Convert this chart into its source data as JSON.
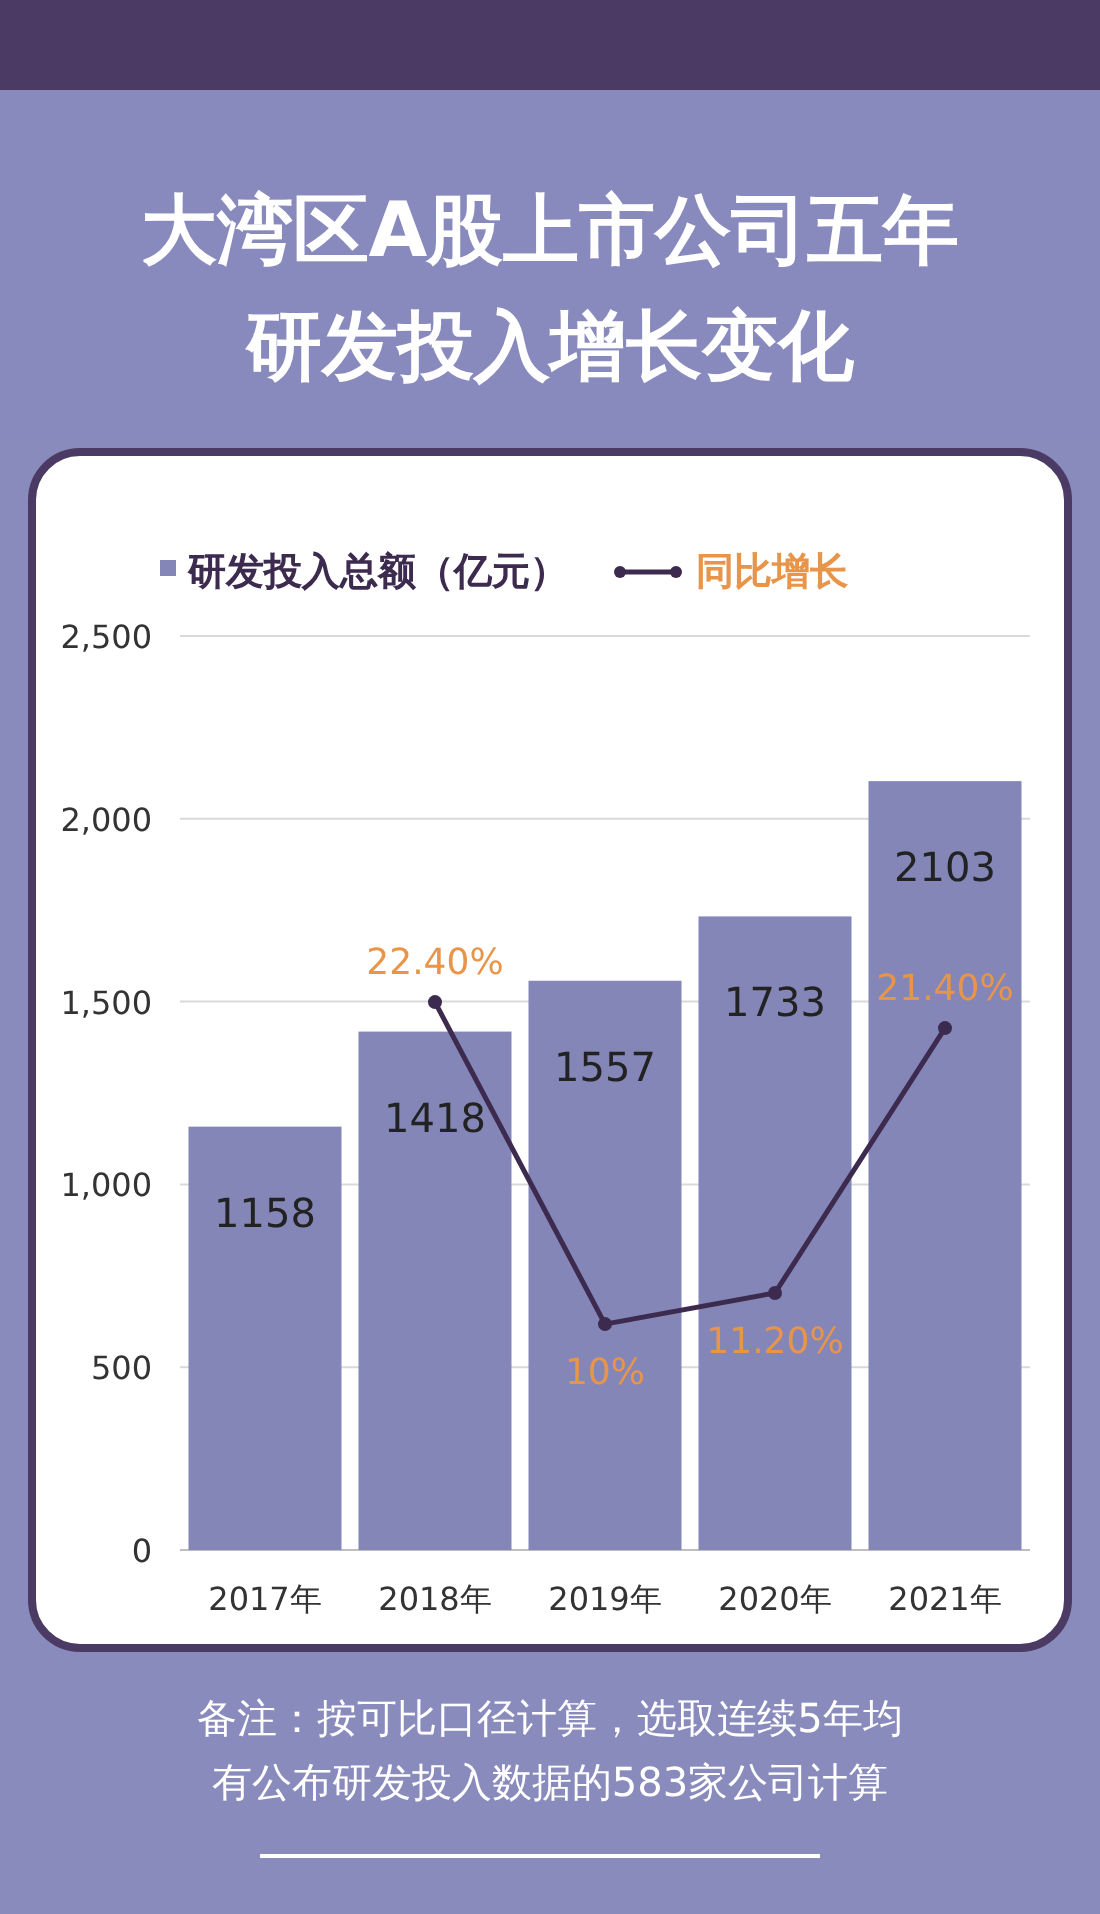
{
  "chart_data": {
    "type": "bar",
    "title": "大湾区A股上市公司五年研发投入增长变化",
    "categories": [
      "2017年",
      "2018年",
      "2019年",
      "2020年",
      "2021年"
    ],
    "series": [
      {
        "name": "研发投入总额（亿元）",
        "color": "#8486b8",
        "values": [
          1158,
          1418,
          1557,
          1733,
          2103
        ],
        "value_labels": [
          "1158",
          "1418",
          "1557",
          "1733",
          "2103"
        ]
      },
      {
        "name": "同比增长",
        "type": "line",
        "axis": "y2",
        "color": "#3d2b4f",
        "values": [
          null,
          22.4,
          10,
          11.2,
          21.4
        ],
        "value_labels": [
          null,
          "22.40%",
          "10%",
          "11.20%",
          "21.40%"
        ]
      }
    ],
    "ylim": [
      0,
      2500
    ],
    "yticks": [
      0,
      {
        "value": 500,
        "label": "500"
      },
      {
        "value": 1000,
        "label": "1,000"
      },
      {
        "value": 1500,
        "label": "1,500"
      },
      {
        "value": 2000,
        "label": "2,000"
      },
      {
        "value": 2500,
        "label": "2,500"
      }
    ],
    "y2lim": [
      1.3,
      36.5
    ],
    "grid": "y",
    "legend": "top",
    "marker": "circle",
    "annotations": [
      "备注：按可比口径计算，选取连续5年均有公布研发投入数据的583家公司计算"
    ]
  }
}
